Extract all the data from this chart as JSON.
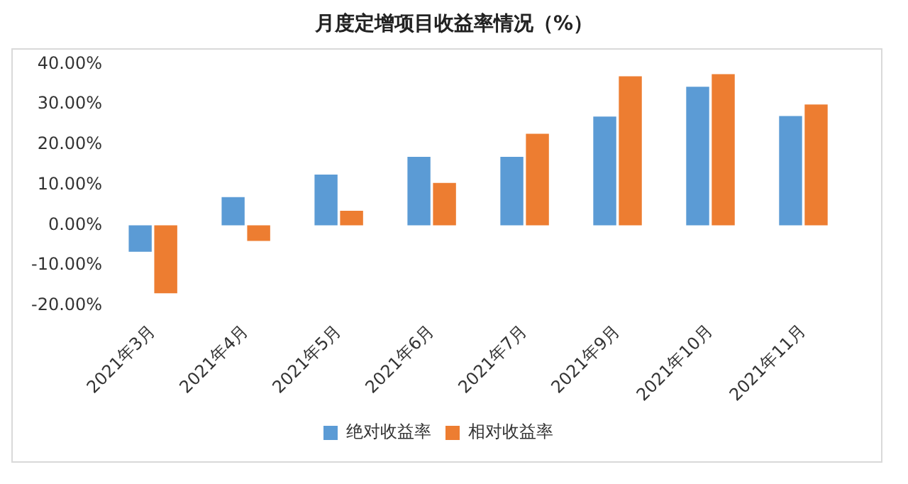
{
  "chart_data": {
    "type": "bar",
    "title": "月度定增项目收益率情况（%）",
    "categories": [
      "2021年3月",
      "2021年4月",
      "2021年5月",
      "2021年6月",
      "2021年7月",
      "2021年9月",
      "2021年10月",
      "2021年11月"
    ],
    "series": [
      {
        "name": "绝对收益率",
        "color": "#5b9bd5",
        "values": [
          -6.6,
          7.0,
          12.6,
          17.0,
          17.0,
          27.0,
          34.4,
          27.1
        ]
      },
      {
        "name": "相对收益率",
        "color": "#ed7d31",
        "values": [
          -16.9,
          -3.9,
          3.6,
          10.5,
          22.7,
          37.0,
          37.5,
          30.0
        ]
      }
    ],
    "ylim": [
      -20,
      40
    ],
    "yticks": [
      {
        "value": -20,
        "label": "-20.00%"
      },
      {
        "value": -10,
        "label": "-10.00%"
      },
      {
        "value": 0,
        "label": "0.00%"
      },
      {
        "value": 10,
        "label": "10.00%"
      },
      {
        "value": 20,
        "label": "20.00%"
      },
      {
        "value": 30,
        "label": "30.00%"
      },
      {
        "value": 40,
        "label": "40.00%"
      }
    ],
    "grid": false,
    "legend": "bottom"
  }
}
